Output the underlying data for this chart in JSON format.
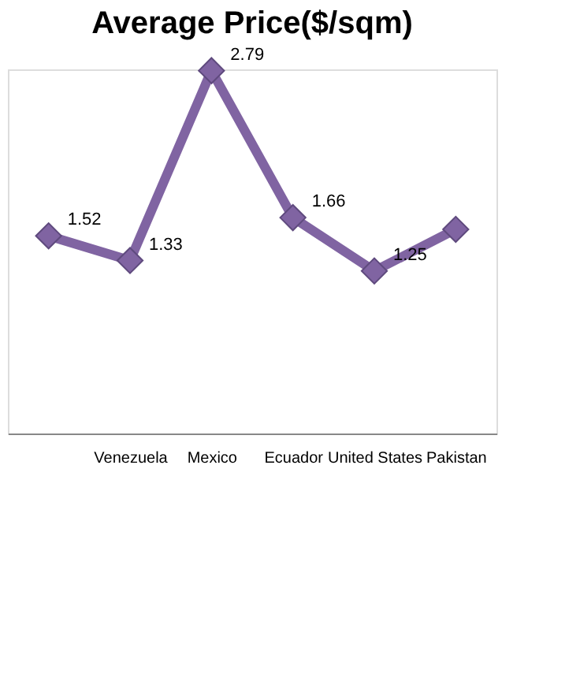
{
  "chart_data": {
    "type": "line",
    "title": "Average Price($/sqm)",
    "categories": [
      null,
      "Venezuela",
      "Mexico",
      "Ecuador",
      "United States",
      "Pakistan"
    ],
    "series": [
      {
        "color": "#8064a2",
        "values": [
          1.52,
          1.33,
          2.79,
          1.66,
          1.25,
          1.57
        ],
        "value_labels": [
          "1.52",
          "1.33",
          "2.79",
          "1.66",
          "1.25",
          null
        ]
      }
    ],
    "marker": "diamond",
    "line_style": "solid",
    "grid": false,
    "tick_labels": "x"
  }
}
